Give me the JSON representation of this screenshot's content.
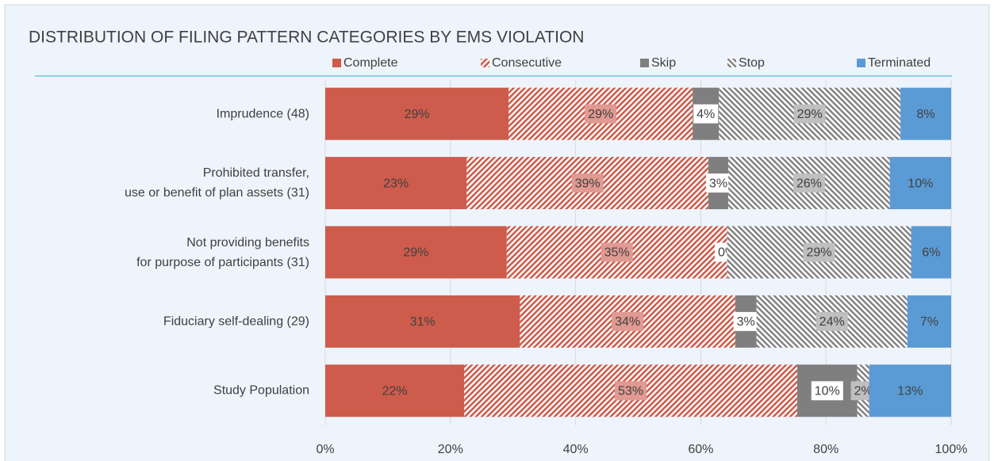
{
  "chart_data": {
    "type": "stacked_bar_horizontal",
    "title": "DISTRIBUTION OF FILING PATTERN CATEGORIES BY EMS VIOLATION",
    "categories": [
      "Imprudence (48)",
      "Prohibited transfer,\nuse or benefit of plan assets (31)",
      "Not providing benefits\nfor purpose of participants (31)",
      "Fiduciary self-dealing (29)",
      "Study Population"
    ],
    "series": [
      {
        "name": "Complete",
        "color": "#cd5c4c",
        "values": [
          29.3,
          22.6,
          29.0,
          31.1,
          22.2
        ],
        "value_labels": [
          "29%",
          "23%",
          "29%",
          "31%",
          "22%"
        ]
      },
      {
        "name": "Consecutive",
        "color": "#cd5c4c",
        "pattern": "hatch",
        "values": [
          29.4,
          38.6,
          35.2,
          34.4,
          53.2
        ],
        "value_labels": [
          "29%",
          "39%",
          "35%",
          "34%",
          "53%"
        ]
      },
      {
        "name": "Skip",
        "color": "#7f7f7f",
        "values": [
          4.2,
          3.2,
          0,
          3.4,
          9.6
        ],
        "value_labels": [
          "4%",
          "3%",
          "0%",
          "3%",
          "10%"
        ]
      },
      {
        "name": "Stop",
        "color": "#7f7f7f",
        "pattern": "hatch",
        "values": [
          29.0,
          25.8,
          29.4,
          24.1,
          1.9
        ],
        "value_labels": [
          "29%",
          "26%",
          "29%",
          "24%",
          "2%"
        ]
      },
      {
        "name": "Terminated",
        "color": "#5b9bd5",
        "values": [
          8.1,
          9.8,
          6.4,
          7.0,
          13.1
        ],
        "value_labels": [
          "8%",
          "10%",
          "6%",
          "7%",
          "13%"
        ]
      }
    ],
    "xlim": [
      0,
      100
    ],
    "xticks": [
      {
        "value": 0,
        "label": "0%"
      },
      {
        "value": 20,
        "label": "20%"
      },
      {
        "value": 40,
        "label": "40%"
      },
      {
        "value": 60,
        "label": "60%"
      },
      {
        "value": 80,
        "label": "80%"
      },
      {
        "value": 100,
        "label": "100%"
      }
    ],
    "grid": true,
    "legend": "top"
  }
}
